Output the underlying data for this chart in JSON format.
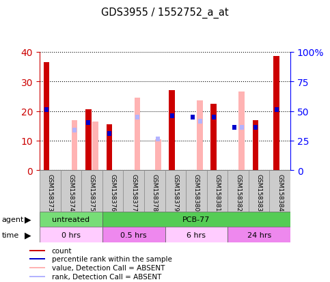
{
  "title": "GDS3955 / 1552752_a_at",
  "samples": [
    "GSM158373",
    "GSM158374",
    "GSM158375",
    "GSM158376",
    "GSM158377",
    "GSM158378",
    "GSM158379",
    "GSM158380",
    "GSM158381",
    "GSM158382",
    "GSM158383",
    "GSM158384"
  ],
  "count_values": [
    36.5,
    0,
    20.5,
    15.5,
    0,
    0,
    27.0,
    0,
    22.5,
    0,
    17.0,
    38.5
  ],
  "percentile_values": [
    20.5,
    0,
    16.0,
    12.5,
    0,
    0,
    18.5,
    18.0,
    18.0,
    14.5,
    14.5,
    20.5
  ],
  "absent_value_values": [
    0,
    17.0,
    16.5,
    0,
    24.5,
    10.5,
    0,
    23.5,
    0,
    26.5,
    0,
    0
  ],
  "absent_rank_values": [
    0,
    13.5,
    0,
    0,
    18.0,
    10.5,
    0,
    16.5,
    0,
    14.5,
    0,
    0
  ],
  "count_color": "#cc0000",
  "percentile_color": "#0000cc",
  "absent_value_color": "#ffb3b3",
  "absent_rank_color": "#b3b3ff",
  "ylim_left": [
    0,
    40
  ],
  "ylim_right": [
    0,
    100
  ],
  "yticks_left": [
    0,
    10,
    20,
    30,
    40
  ],
  "yticks_right": [
    0,
    25,
    50,
    75,
    100
  ],
  "ytick_labels_right": [
    "0",
    "25",
    "50",
    "75",
    "100%"
  ],
  "agent_groups": [
    {
      "label": "untreated",
      "start": 0,
      "end": 3,
      "color": "#77dd77"
    },
    {
      "label": "PCB-77",
      "start": 3,
      "end": 12,
      "color": "#55cc55"
    }
  ],
  "time_groups": [
    {
      "label": "0 hrs",
      "start": 0,
      "end": 3,
      "color": "#ffccff"
    },
    {
      "label": "0.5 hrs",
      "start": 3,
      "end": 6,
      "color": "#ee88ee"
    },
    {
      "label": "6 hrs",
      "start": 6,
      "end": 9,
      "color": "#ffccff"
    },
    {
      "label": "24 hrs",
      "start": 9,
      "end": 12,
      "color": "#ee88ee"
    }
  ],
  "legend_items": [
    {
      "label": "count",
      "color": "#cc0000"
    },
    {
      "label": "percentile rank within the sample",
      "color": "#0000cc"
    },
    {
      "label": "value, Detection Call = ABSENT",
      "color": "#ffb3b3"
    },
    {
      "label": "rank, Detection Call = ABSENT",
      "color": "#b3b3ff"
    }
  ],
  "bar_width": 0.28,
  "bar_gap": 0.06
}
